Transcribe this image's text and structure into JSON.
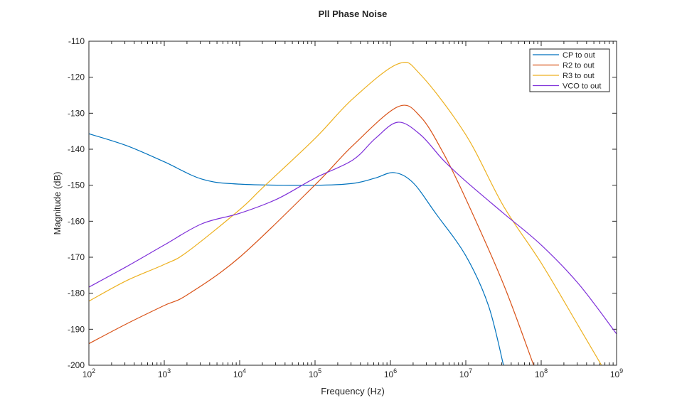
{
  "chart_data": {
    "type": "line",
    "title": "Pll Phase Noise",
    "xlabel": "Frequency (Hz)",
    "ylabel": "Magnitude (dB)",
    "xscale": "log",
    "xlim": [
      100,
      1000000000
    ],
    "ylim": [
      -200,
      -110
    ],
    "xticks": [
      {
        "base": "10",
        "exp": "2"
      },
      {
        "base": "10",
        "exp": "3"
      },
      {
        "base": "10",
        "exp": "4"
      },
      {
        "base": "10",
        "exp": "5"
      },
      {
        "base": "10",
        "exp": "6"
      },
      {
        "base": "10",
        "exp": "7"
      },
      {
        "base": "10",
        "exp": "8"
      },
      {
        "base": "10",
        "exp": "9"
      }
    ],
    "yticks": [
      "-110",
      "-120",
      "-130",
      "-140",
      "-150",
      "-160",
      "-170",
      "-180",
      "-190",
      "-200"
    ],
    "legend_position": "top-right",
    "series": [
      {
        "name": "CP to out",
        "color": "#0072BD",
        "log10x": [
          2,
          2.5,
          3,
          3.5,
          4,
          5,
          5.5,
          5.8,
          6.05,
          6.3,
          6.6,
          7,
          7.3,
          7.5
        ],
        "y": [
          -135.7,
          -139,
          -143.5,
          -148.3,
          -149.7,
          -150,
          -149.5,
          -148,
          -146.5,
          -149.3,
          -157.8,
          -169.6,
          -183.4,
          -200
        ]
      },
      {
        "name": "R2 to out",
        "color": "#D95319",
        "log10x": [
          2,
          2.5,
          3,
          3.3,
          4,
          5,
          5.5,
          6.1,
          6.4,
          6.7,
          7,
          7.5,
          7.9
        ],
        "y": [
          -194,
          -188.5,
          -183.4,
          -180.5,
          -170,
          -149.9,
          -139,
          -128.2,
          -131,
          -141,
          -153.8,
          -177.5,
          -200
        ]
      },
      {
        "name": "R3 to out",
        "color": "#EDB120",
        "log10x": [
          2,
          2.5,
          3,
          3.3,
          4,
          4.3,
          5,
          5.5,
          6.1,
          6.4,
          7,
          7.5,
          8,
          8.5,
          8.8
        ],
        "y": [
          -182.2,
          -176.5,
          -172,
          -168.6,
          -156.8,
          -150.8,
          -137,
          -126,
          -116.3,
          -119.3,
          -136,
          -155.8,
          -171.6,
          -189.3,
          -200
        ]
      },
      {
        "name": "VCO to out",
        "color": "#7E2FD9",
        "log10x": [
          2,
          2.5,
          3,
          3.5,
          4,
          4.5,
          5,
          5.5,
          5.8,
          6.1,
          6.4,
          6.7,
          7,
          7.5,
          8,
          8.5,
          9
        ],
        "y": [
          -178.3,
          -172.6,
          -166.6,
          -160.7,
          -157.8,
          -153.8,
          -148,
          -143,
          -137,
          -132.5,
          -136,
          -143,
          -148.9,
          -157.8,
          -166.6,
          -177.5,
          -191.3
        ]
      }
    ]
  }
}
